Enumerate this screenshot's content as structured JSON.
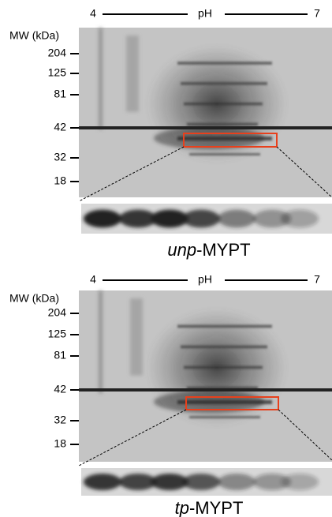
{
  "panels": [
    {
      "ph_start": "4",
      "ph_label": "pH",
      "ph_end": "7",
      "mw_label": "MW (kDa)",
      "mw_markers": [
        "204",
        "125",
        "81",
        "42",
        "32",
        "18"
      ],
      "caption_italic": "unp",
      "caption_rest": "-MYPT"
    },
    {
      "ph_start": "4",
      "ph_label": "pH",
      "ph_end": "7",
      "mw_label": "MW (kDa)",
      "mw_markers": [
        "204",
        "125",
        "81",
        "42",
        "32",
        "18"
      ],
      "caption_italic": "tp",
      "caption_rest": "-MYPT"
    }
  ]
}
